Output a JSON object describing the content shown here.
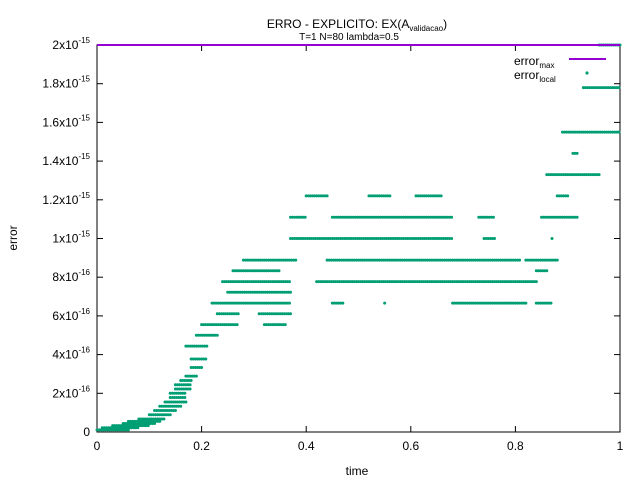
{
  "chart_data": {
    "type": "scatter",
    "title": "ERRO - EXPLICITO: EX(A",
    "title_subscript": "validacao",
    "title_suffix": ")",
    "subtitle": "T=1 N=80 lambda=0.5",
    "xlabel": "time",
    "ylabel": "error",
    "xlim": [
      0,
      1
    ],
    "ylim": [
      0,
      2e-15
    ],
    "x_ticks": [
      {
        "value": 0,
        "label": "0"
      },
      {
        "value": 0.2,
        "label": "0.2"
      },
      {
        "value": 0.4,
        "label": "0.4"
      },
      {
        "value": 0.6,
        "label": "0.6"
      },
      {
        "value": 0.8,
        "label": "0.8"
      },
      {
        "value": 1.0,
        "label": "1"
      }
    ],
    "y_ticks": [
      {
        "value": 0,
        "mant": "0",
        "exp": ""
      },
      {
        "value": 2e-16,
        "mant": "2x10",
        "exp": "-16"
      },
      {
        "value": 4e-16,
        "mant": "4x10",
        "exp": "-16"
      },
      {
        "value": 6e-16,
        "mant": "6x10",
        "exp": "-16"
      },
      {
        "value": 8e-16,
        "mant": "8x10",
        "exp": "-16"
      },
      {
        "value": 1e-15,
        "mant": "1x10",
        "exp": "-15"
      },
      {
        "value": 1.2e-15,
        "mant": "1.2x10",
        "exp": "-15"
      },
      {
        "value": 1.4e-15,
        "mant": "1.4x10",
        "exp": "-15"
      },
      {
        "value": 1.6e-15,
        "mant": "1.6x10",
        "exp": "-15"
      },
      {
        "value": 1.8e-15,
        "mant": "1.8x10",
        "exp": "-15"
      },
      {
        "value": 2e-15,
        "mant": "2x10",
        "exp": "-15"
      }
    ],
    "grid": false,
    "legend_position": "top-right",
    "series": [
      {
        "name": "error",
        "name_subscript": "max",
        "style": "line",
        "color": "#9400d3",
        "x": [
          0,
          1
        ],
        "y": [
          2e-15,
          2e-15
        ]
      },
      {
        "name": "error",
        "name_subscript": "local",
        "style": "points",
        "color": "#009e73",
        "bands": [
          {
            "y": 1.1e-17,
            "x": [
              [
                0.0,
                0.06
              ]
            ]
          },
          {
            "y": 2.2e-17,
            "x": [
              [
                0.01,
                0.08
              ]
            ]
          },
          {
            "y": 3.3e-17,
            "x": [
              [
                0.03,
                0.1
              ]
            ]
          },
          {
            "y": 4.4e-17,
            "x": [
              [
                0.05,
                0.11
              ]
            ]
          },
          {
            "y": 5.5e-17,
            "x": [
              [
                0.06,
                0.12
              ]
            ]
          },
          {
            "y": 6.7e-17,
            "x": [
              [
                0.08,
                0.13
              ]
            ]
          },
          {
            "y": 8.9e-17,
            "x": [
              [
                0.1,
                0.14
              ]
            ]
          },
          {
            "y": 1.11e-16,
            "x": [
              [
                0.11,
                0.15
              ]
            ]
          },
          {
            "y": 1.33e-16,
            "x": [
              [
                0.12,
                0.16
              ]
            ]
          },
          {
            "y": 1.55e-16,
            "x": [
              [
                0.13,
                0.17
              ]
            ]
          },
          {
            "y": 1.78e-16,
            "x": [
              [
                0.14,
                0.17
              ]
            ]
          },
          {
            "y": 2e-16,
            "x": [
              [
                0.14,
                0.17
              ]
            ]
          },
          {
            "y": 2.22e-16,
            "x": [
              [
                0.15,
                0.18
              ]
            ]
          },
          {
            "y": 2.44e-16,
            "x": [
              [
                0.15,
                0.18
              ]
            ]
          },
          {
            "y": 2.66e-16,
            "x": [
              [
                0.16,
                0.18
              ]
            ]
          },
          {
            "y": 2.89e-16,
            "x": [
              [
                0.17,
                0.19
              ]
            ]
          },
          {
            "y": 3.33e-16,
            "x": [
              [
                0.18,
                0.2
              ]
            ]
          },
          {
            "y": 3.77e-16,
            "x": [
              [
                0.18,
                0.21
              ]
            ]
          },
          {
            "y": 4.44e-16,
            "x": [
              [
                0.17,
                0.21
              ]
            ]
          },
          {
            "y": 5e-16,
            "x": [
              [
                0.19,
                0.23
              ]
            ]
          },
          {
            "y": 5.55e-16,
            "x": [
              [
                0.2,
                0.27
              ],
              [
                0.32,
                0.36
              ]
            ]
          },
          {
            "y": 6.11e-16,
            "x": [
              [
                0.23,
                0.27
              ],
              [
                0.31,
                0.37
              ]
            ]
          },
          {
            "y": 6.66e-16,
            "x": [
              [
                0.22,
                0.37
              ],
              [
                0.45,
                0.47
              ],
              [
                0.55,
                0.55
              ],
              [
                0.68,
                0.82
              ],
              [
                0.84,
                0.87
              ]
            ]
          },
          {
            "y": 7.22e-16,
            "x": [
              [
                0.25,
                0.37
              ]
            ]
          },
          {
            "y": 7.77e-16,
            "x": [
              [
                0.24,
                0.37
              ],
              [
                0.42,
                0.84
              ]
            ]
          },
          {
            "y": 8.33e-16,
            "x": [
              [
                0.26,
                0.35
              ],
              [
                0.84,
                0.86
              ]
            ]
          },
          {
            "y": 8.88e-16,
            "x": [
              [
                0.28,
                0.38
              ],
              [
                0.44,
                0.81
              ],
              [
                0.82,
                0.88
              ]
            ]
          },
          {
            "y": 1e-15,
            "x": [
              [
                0.37,
                0.68
              ],
              [
                0.74,
                0.76
              ],
              [
                0.87,
                0.87
              ]
            ]
          },
          {
            "y": 1.11e-15,
            "x": [
              [
                0.37,
                0.4
              ],
              [
                0.45,
                0.68
              ],
              [
                0.73,
                0.76
              ],
              [
                0.85,
                0.92
              ]
            ]
          },
          {
            "y": 1.22e-15,
            "x": [
              [
                0.4,
                0.44
              ],
              [
                0.52,
                0.56
              ],
              [
                0.61,
                0.66
              ],
              [
                0.88,
                0.9
              ]
            ]
          },
          {
            "y": 1.33e-15,
            "x": [
              [
                0.86,
                0.96
              ]
            ]
          },
          {
            "y": 1.44e-15,
            "x": [
              [
                0.91,
                0.92
              ]
            ]
          },
          {
            "y": 1.55e-15,
            "x": [
              [
                0.89,
                1.0
              ]
            ]
          },
          {
            "y": 1.78e-15,
            "x": [
              [
                0.93,
                1.0
              ]
            ]
          },
          {
            "y": 2e-15,
            "x": [
              [
                0.96,
                1.0
              ]
            ]
          }
        ]
      }
    ]
  }
}
